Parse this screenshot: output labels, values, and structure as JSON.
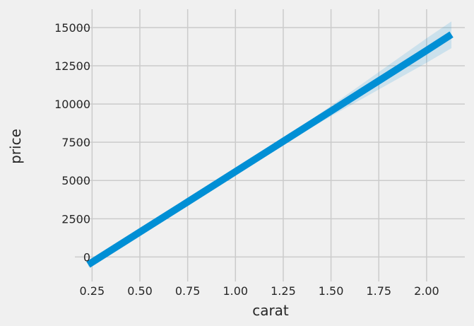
{
  "chart_data": {
    "type": "line",
    "title": "",
    "xlabel": "carat",
    "ylabel": "price",
    "xlim": [
      0.16,
      2.2
    ],
    "ylim": [
      -1600,
      16200
    ],
    "xticks": [
      0.25,
      0.5,
      0.75,
      1.0,
      1.25,
      1.5,
      1.75,
      2.0
    ],
    "xtick_labels": [
      "0.25",
      "0.50",
      "0.75",
      "1.00",
      "1.25",
      "1.50",
      "1.75",
      "2.00"
    ],
    "yticks": [
      0,
      2500,
      5000,
      7500,
      10000,
      12500,
      15000
    ],
    "ytick_labels": [
      "0",
      "2500",
      "5000",
      "7500",
      "10000",
      "12500",
      "15000"
    ],
    "grid": true,
    "series": [
      {
        "type": "regression-line",
        "x": [
          0.23,
          0.5,
          0.75,
          1.0,
          1.25,
          1.5,
          1.75,
          2.0,
          2.13
        ],
        "y": [
          -500,
          1630,
          3600,
          5580,
          7560,
          9540,
          11520,
          13500,
          14550
        ],
        "color": "#008fd5",
        "band": {
          "x": [
            0.23,
            0.5,
            0.75,
            1.0,
            1.25,
            1.5,
            1.75,
            2.0,
            2.13
          ],
          "lower": [
            -650,
            1520,
            3520,
            5520,
            7380,
            9200,
            10950,
            12700,
            13650
          ],
          "upper": [
            -350,
            1750,
            3690,
            5650,
            7740,
            9880,
            12090,
            14300,
            15400
          ],
          "color": "#008fd5"
        }
      }
    ],
    "colors": {
      "background": "#f0f0f0",
      "grid": "#cbcbcb",
      "text": "#262626"
    }
  }
}
